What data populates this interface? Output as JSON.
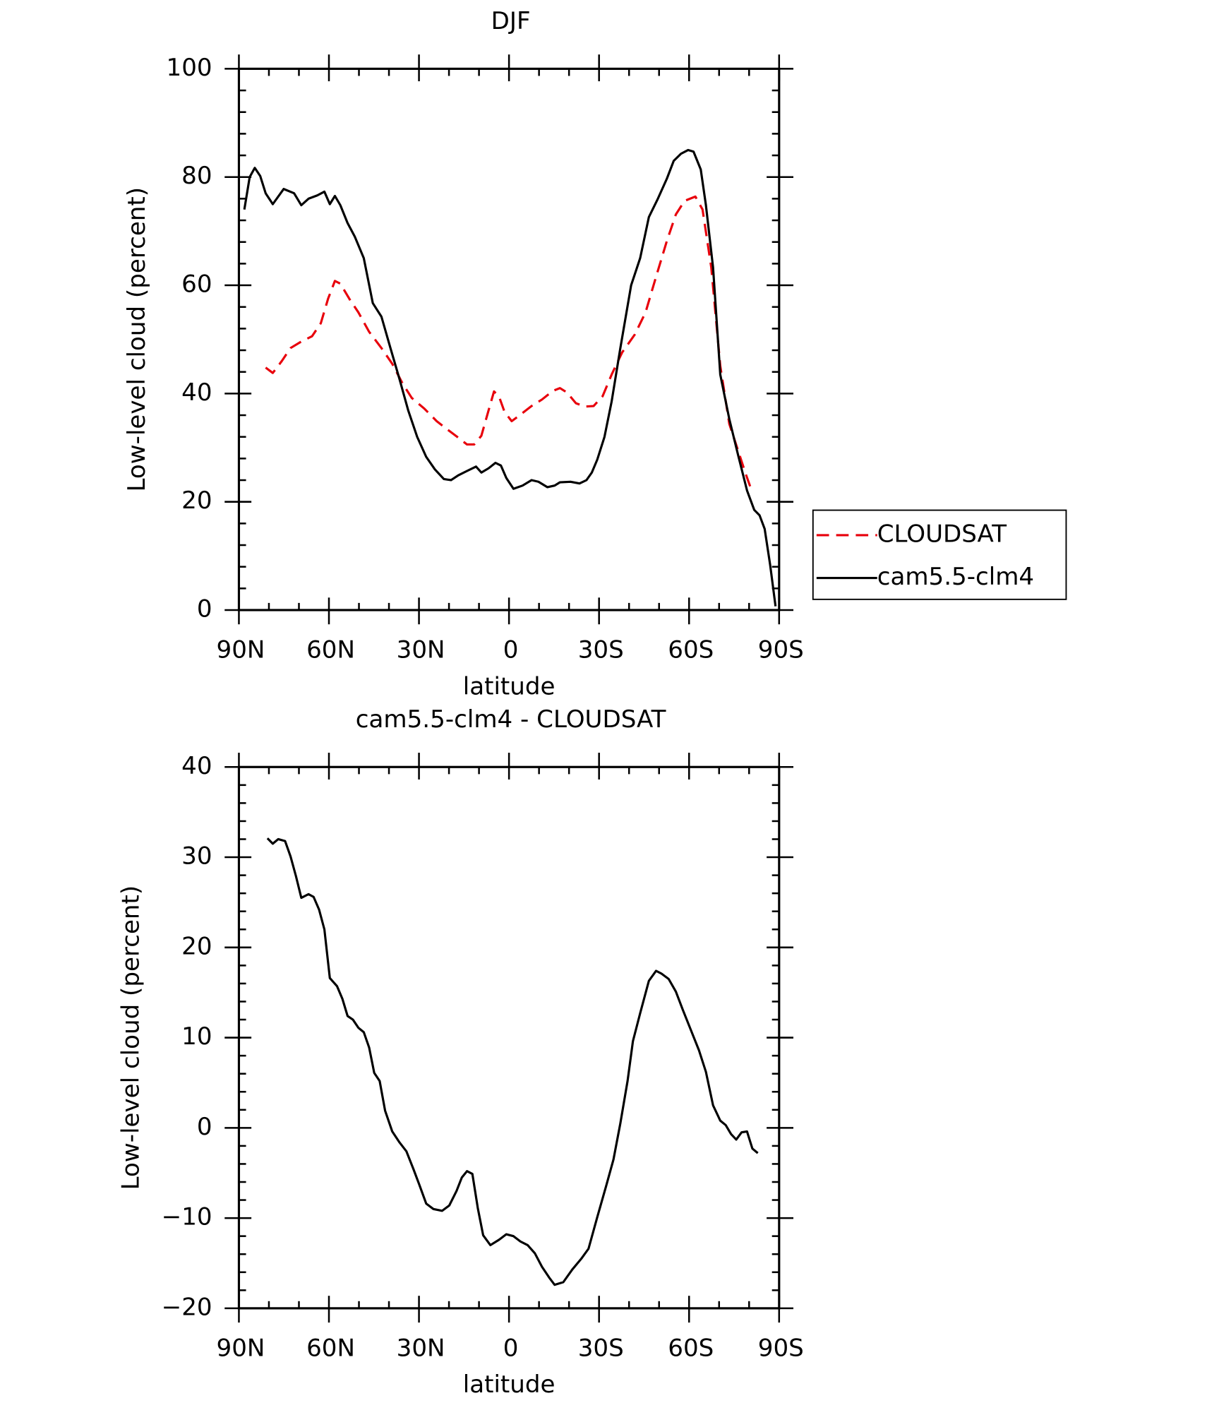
{
  "chart_data": [
    {
      "type": "line",
      "title": "DJF",
      "xlabel": "latitude",
      "ylabel": "Low-level cloud (percent)",
      "xlim": [
        90,
        -90
      ],
      "xticks": [
        {
          "value": 90,
          "label": "90N"
        },
        {
          "value": 60,
          "label": "60N"
        },
        {
          "value": 30,
          "label": "30N"
        },
        0,
        {
          "value": -30,
          "label": "30S"
        },
        {
          "value": -60,
          "label": "60S"
        },
        {
          "value": -90,
          "label": "90S"
        }
      ],
      "ylim": [
        0,
        100
      ],
      "yticks": [
        0,
        20,
        40,
        60,
        80,
        100
      ],
      "legend": "right",
      "series": [
        {
          "name": "CLOUDSAT",
          "color": "#e8000b",
          "line_style": "dashed",
          "x": [
            81.1,
            78.7,
            75.7,
            72.8,
            69.2,
            65.6,
            62.7,
            60.3,
            58,
            56.2,
            53.2,
            50.2,
            46.6,
            42.5,
            38.9,
            35.4,
            32.4,
            28.2,
            24.1,
            19.9,
            16.3,
            14,
            11.6,
            9.2,
            6.8,
            5,
            3.3,
            1.5,
            -0.9,
            -3.8,
            -7.5,
            -11,
            -14.6,
            -17,
            -19.3,
            -22.3,
            -25.3,
            -28.2,
            -31.2,
            -34.2,
            -37.7,
            -41.9,
            -45.5,
            -49,
            -52.6,
            -55.6,
            -58.5,
            -62.1,
            -64.5,
            -67.4,
            -70.4,
            -73.4,
            -76.3,
            -78.7,
            -81.1
          ],
          "values": [
            44.8,
            43.8,
            46,
            48.4,
            49.6,
            50.6,
            53,
            57.5,
            60.8,
            60.3,
            57.5,
            55,
            51.4,
            48.4,
            45.5,
            41.8,
            39.2,
            37.2,
            34.9,
            33.1,
            31.6,
            30.6,
            30.6,
            32.2,
            36.9,
            40.4,
            39.4,
            36.6,
            34.9,
            36.1,
            37.7,
            38.9,
            40.5,
            41,
            40.2,
            38.2,
            37.6,
            37.7,
            39.5,
            43.5,
            47.6,
            50.9,
            55,
            61.6,
            68.2,
            73.1,
            75.6,
            76.4,
            74,
            63.3,
            45.1,
            34.4,
            29.5,
            25.4,
            21.7
          ]
        },
        {
          "name": "cam5.5-clm4",
          "color": "#000000",
          "line_style": "solid",
          "x": [
            88.2,
            86.4,
            84.7,
            82.9,
            81.1,
            78.7,
            75.1,
            71.6,
            69.2,
            66.8,
            63.9,
            61.5,
            59.7,
            58,
            56.2,
            53.8,
            51.4,
            48.4,
            45.4,
            42.5,
            39.5,
            36.5,
            33.6,
            30.6,
            27.6,
            24.7,
            21.7,
            19.3,
            16.9,
            14,
            11,
            9.2,
            6.8,
            4.5,
            2.7,
            0.9,
            -1.5,
            -4.5,
            -7.5,
            -9.8,
            -12.8,
            -15.2,
            -17,
            -20.5,
            -23.5,
            -25.8,
            -27.6,
            -29.4,
            -31.8,
            -34.2,
            -37.1,
            -40.7,
            -43.7,
            -46.6,
            -49.6,
            -52.6,
            -54.9,
            -57.3,
            -59.7,
            -61.5,
            -63.9,
            -65.6,
            -68,
            -70.4,
            -73.4,
            -76.3,
            -79.3,
            -81.7,
            -83.5,
            -85.2,
            -87,
            -88.8
          ],
          "values": [
            74,
            80,
            81.7,
            80.2,
            77,
            75,
            77.8,
            77,
            74.8,
            76,
            76.6,
            77.3,
            75,
            76.5,
            74.8,
            71.5,
            69,
            65,
            56.7,
            54.2,
            48.4,
            42.7,
            36.9,
            32,
            28.3,
            26,
            24.2,
            24,
            24.9,
            25.7,
            26.5,
            25.4,
            26.2,
            27.2,
            26.7,
            24.4,
            22.4,
            23,
            24,
            23.7,
            22.7,
            23,
            23.6,
            23.7,
            23.4,
            24,
            25.4,
            27.8,
            32,
            38.5,
            48.4,
            60,
            65,
            72.6,
            76,
            79.7,
            83,
            84.3,
            85,
            84.7,
            81.4,
            74.8,
            63.3,
            43.5,
            35.3,
            28.7,
            22.1,
            18.5,
            17.5,
            15,
            8.4,
            0.7
          ]
        }
      ]
    },
    {
      "type": "line",
      "title": "cam5.5-clm4 - CLOUDSAT",
      "xlabel": "latitude",
      "ylabel": "Low-level cloud (percent)",
      "xlim": [
        90,
        -90
      ],
      "xticks": [
        {
          "value": 90,
          "label": "90N"
        },
        {
          "value": 60,
          "label": "60N"
        },
        {
          "value": 30,
          "label": "30N"
        },
        0,
        {
          "value": -30,
          "label": "30S"
        },
        {
          "value": -60,
          "label": "60S"
        },
        {
          "value": -90,
          "label": "90S"
        }
      ],
      "ylim": [
        -20,
        40
      ],
      "yticks": [
        {
          "value": -20,
          "label": "−20"
        },
        {
          "value": -10,
          "label": "−10"
        },
        0,
        10,
        20,
        30,
        40
      ],
      "color": "#000000",
      "x": [
        80.5,
        78.7,
        76.9,
        74.6,
        72.8,
        71,
        69.2,
        66.8,
        65.1,
        63.3,
        61.5,
        59.7,
        57.3,
        55.5,
        53.8,
        52,
        50.2,
        48.4,
        46.6,
        44.9,
        43.1,
        41.3,
        38.9,
        36.5,
        34.2,
        31.8,
        30,
        27.6,
        25.2,
        22.3,
        19.9,
        17.5,
        15.7,
        14,
        12.2,
        10.4,
        8.6,
        6.2,
        3.3,
        0.9,
        -1.5,
        -3.8,
        -6.2,
        -8.6,
        -11,
        -13.4,
        -15.2,
        -18.1,
        -21.1,
        -24.1,
        -26.5,
        -29.4,
        -32.4,
        -34.8,
        -37.1,
        -39.5,
        -41.3,
        -43.7,
        -46.6,
        -49,
        -50.8,
        -53.2,
        -55.6,
        -57.9,
        -60.3,
        -63.3,
        -65.6,
        -68,
        -70.4,
        -72.2,
        -74,
        -75.7,
        -77.5,
        -79.3,
        -81.1,
        -82.9
      ],
      "values": [
        32.1,
        31.5,
        32,
        31.8,
        30.1,
        27.9,
        25.5,
        25.9,
        25.6,
        24.2,
        22,
        16.6,
        15.7,
        14.3,
        12.4,
        12,
        11.1,
        10.6,
        8.9,
        6.1,
        5.2,
        1.9,
        -0.4,
        -1.6,
        -2.6,
        -4.6,
        -6.2,
        -8.4,
        -9,
        -9.2,
        -8.6,
        -7,
        -5.5,
        -4.8,
        -5.1,
        -8.9,
        -11.9,
        -13,
        -12.4,
        -11.8,
        -12,
        -12.6,
        -13,
        -13.9,
        -15.4,
        -16.6,
        -17.4,
        -17.1,
        -15.7,
        -14.5,
        -13.4,
        -9.9,
        -6.4,
        -3.5,
        0.5,
        5.2,
        9.6,
        12.7,
        16.3,
        17.4,
        17.1,
        16.5,
        15.1,
        13.1,
        11.1,
        8.6,
        6.2,
        2.5,
        0.8,
        0.3,
        -0.7,
        -1.3,
        -0.5,
        -0.4,
        -2.3,
        -2.8
      ]
    }
  ]
}
